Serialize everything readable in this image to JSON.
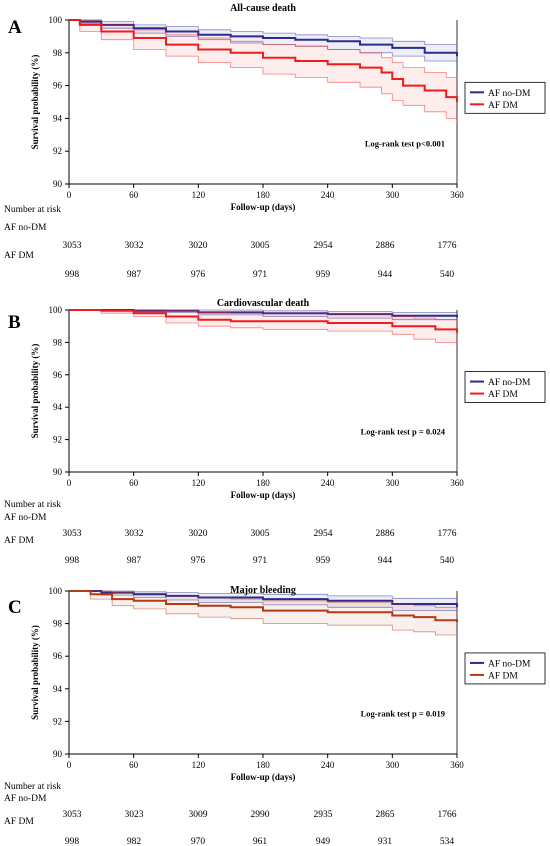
{
  "chart_data": [
    {
      "panel": "A",
      "type": "line",
      "title": "All-cause death",
      "xlabel": "Follow-up (days)",
      "ylabel": "Survival probability (%)",
      "xticks": [
        0,
        60,
        120,
        180,
        240,
        300,
        360
      ],
      "yticks": [
        90,
        92,
        94,
        96,
        98,
        100
      ],
      "xlim": [
        0,
        360
      ],
      "ylim": [
        90,
        100
      ],
      "annotation": "Log-rank test p<0.001",
      "legend": "right",
      "series": [
        {
          "name": "AF no-DM",
          "color": "#2b2b8f",
          "x": [
            0,
            10,
            30,
            60,
            90,
            120,
            150,
            180,
            210,
            240,
            270,
            300,
            330,
            360
          ],
          "y": [
            100,
            99.9,
            99.7,
            99.5,
            99.3,
            99.1,
            99.0,
            98.9,
            98.8,
            98.7,
            98.5,
            98.3,
            98.0,
            97.8
          ],
          "lower": [
            100,
            99.8,
            99.5,
            99.2,
            99.0,
            98.8,
            98.6,
            98.5,
            98.4,
            98.2,
            98.0,
            97.8,
            97.5,
            97.3
          ],
          "upper": [
            100,
            100,
            99.9,
            99.7,
            99.6,
            99.4,
            99.3,
            99.2,
            99.1,
            99.0,
            98.9,
            98.7,
            98.5,
            98.3
          ]
        },
        {
          "name": "AF DM",
          "color": "#ee1c1c",
          "x": [
            0,
            10,
            30,
            60,
            90,
            120,
            150,
            180,
            210,
            240,
            270,
            290,
            300,
            310,
            330,
            350,
            360
          ],
          "y": [
            100,
            99.7,
            99.3,
            98.9,
            98.5,
            98.2,
            98.0,
            97.7,
            97.5,
            97.3,
            97.1,
            96.8,
            96.4,
            96.0,
            95.7,
            95.3,
            95.0
          ],
          "lower": [
            100,
            99.3,
            98.8,
            98.2,
            97.8,
            97.4,
            97.1,
            96.7,
            96.5,
            96.2,
            95.9,
            95.5,
            95.1,
            94.8,
            94.4,
            94.0,
            93.7
          ],
          "upper": [
            100,
            100,
            99.7,
            99.4,
            99.1,
            98.9,
            98.7,
            98.5,
            98.4,
            98.2,
            98.0,
            97.7,
            97.4,
            97.1,
            96.8,
            96.5,
            96.3
          ]
        }
      ]
    },
    {
      "panel": "B",
      "type": "line",
      "title": "Cardiovascular death",
      "xlabel": "Follow-up (days)",
      "ylabel": "Survival probability (%)",
      "xticks": [
        0,
        60,
        120,
        180,
        240,
        300,
        360
      ],
      "yticks": [
        90,
        92,
        94,
        96,
        98,
        100
      ],
      "xlim": [
        0,
        360
      ],
      "ylim": [
        90,
        100
      ],
      "annotation": "Log-rank test p = 0.024",
      "legend": "right",
      "series": [
        {
          "name": "AF no-DM",
          "color": "#2b2b8f",
          "x": [
            0,
            60,
            120,
            180,
            240,
            300,
            360
          ],
          "y": [
            100,
            99.95,
            99.85,
            99.8,
            99.75,
            99.65,
            99.55
          ],
          "lower": [
            100,
            99.85,
            99.7,
            99.6,
            99.5,
            99.4,
            99.3
          ],
          "upper": [
            100,
            100,
            100,
            99.95,
            99.9,
            99.85,
            99.8
          ]
        },
        {
          "name": "AF DM",
          "color": "#ee1c1c",
          "x": [
            0,
            30,
            60,
            90,
            120,
            150,
            180,
            240,
            300,
            320,
            340,
            360
          ],
          "y": [
            100,
            99.95,
            99.8,
            99.6,
            99.4,
            99.3,
            99.3,
            99.2,
            99.0,
            99.0,
            98.8,
            98.6
          ],
          "lower": [
            100,
            99.8,
            99.6,
            99.2,
            99.0,
            98.9,
            98.8,
            98.7,
            98.5,
            98.2,
            98.0,
            97.8
          ],
          "upper": [
            100,
            100,
            100,
            99.95,
            99.85,
            99.8,
            99.8,
            99.75,
            99.6,
            99.5,
            99.4,
            99.3
          ]
        }
      ]
    },
    {
      "panel": "C",
      "type": "line",
      "title": "Major bleeding",
      "xlabel": "Follow-up (days)",
      "ylabel": "Survival probability (%)",
      "xticks": [
        0,
        60,
        120,
        180,
        240,
        300,
        360
      ],
      "yticks": [
        90,
        92,
        94,
        96,
        98,
        100
      ],
      "xlim": [
        0,
        360
      ],
      "ylim": [
        90,
        100
      ],
      "annotation": "Log-rank test p = 0.019",
      "legend": "right",
      "series": [
        {
          "name": "AF no-DM",
          "color": "#2b2b8f",
          "x": [
            0,
            30,
            60,
            90,
            120,
            180,
            240,
            300,
            360
          ],
          "y": [
            100,
            99.9,
            99.8,
            99.7,
            99.6,
            99.5,
            99.4,
            99.2,
            99.0
          ],
          "lower": [
            100,
            99.75,
            99.6,
            99.45,
            99.3,
            99.15,
            99.0,
            98.8,
            98.6
          ],
          "upper": [
            100,
            100,
            99.95,
            99.9,
            99.85,
            99.8,
            99.7,
            99.55,
            99.4
          ]
        },
        {
          "name": "AF DM",
          "color": "#b23a14",
          "x": [
            0,
            20,
            40,
            60,
            90,
            120,
            150,
            180,
            240,
            300,
            320,
            340,
            360
          ],
          "y": [
            100,
            99.8,
            99.5,
            99.4,
            99.2,
            99.1,
            99.0,
            98.8,
            98.7,
            98.5,
            98.4,
            98.2,
            98.1
          ],
          "lower": [
            100,
            99.5,
            99.1,
            98.9,
            98.6,
            98.4,
            98.3,
            98.0,
            97.9,
            97.6,
            97.5,
            97.3,
            97.2
          ],
          "upper": [
            100,
            100,
            99.9,
            99.85,
            99.7,
            99.6,
            99.5,
            99.4,
            99.3,
            99.2,
            99.1,
            99.0,
            98.9
          ]
        }
      ]
    }
  ],
  "risk_tables": [
    {
      "header": "Number at risk",
      "groups": [
        {
          "name": "AF no-DM",
          "values": [
            3053,
            3032,
            3020,
            3005,
            2954,
            2886,
            1776
          ]
        },
        {
          "name": "AF DM",
          "values": [
            998,
            987,
            976,
            971,
            959,
            944,
            540
          ]
        }
      ]
    },
    {
      "header": "Number at risk",
      "groups": [
        {
          "name": "AF no-DM",
          "values": [
            3053,
            3032,
            3020,
            3005,
            2954,
            2886,
            1776
          ]
        },
        {
          "name": "AF DM",
          "values": [
            998,
            987,
            976,
            971,
            959,
            944,
            540
          ]
        }
      ]
    },
    {
      "header": "Number at risk",
      "groups": [
        {
          "name": "AF no-DM",
          "values": [
            3053,
            3023,
            3009,
            2990,
            2935,
            2865,
            1766
          ]
        },
        {
          "name": "AF DM",
          "values": [
            998,
            982,
            970,
            961,
            949,
            931,
            534
          ]
        }
      ]
    }
  ]
}
